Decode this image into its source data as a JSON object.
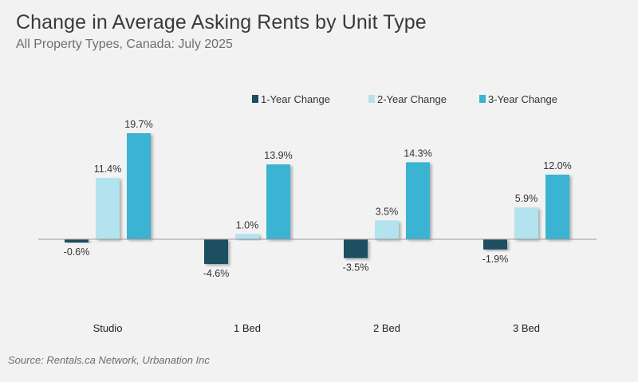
{
  "header": {
    "title": "Change in Average Asking Rents by Unit Type",
    "subtitle": "All Property Types, Canada: July 2025"
  },
  "footer": {
    "source": "Source: Rentals.ca Network, Urbanation Inc"
  },
  "chart_data": {
    "type": "bar",
    "title": "Change in Average Asking Rents by Unit Type",
    "subtitle": "All Property Types, Canada: July 2025",
    "categories": [
      "Studio",
      "1 Bed",
      "2 Bed",
      "3 Bed"
    ],
    "series": [
      {
        "name": "1-Year Change",
        "color": "#1b4f5e",
        "values": [
          -0.6,
          -4.6,
          -3.5,
          -1.9
        ],
        "labels": [
          "-0.6%",
          "-4.6%",
          "-3.5%",
          "-1.9%"
        ]
      },
      {
        "name": "2-Year Change",
        "color": "#b3e3ef",
        "values": [
          11.4,
          1.0,
          3.5,
          5.9
        ],
        "labels": [
          "11.4%",
          "1.0%",
          "3.5%",
          "5.9%"
        ]
      },
      {
        "name": "3-Year Change",
        "color": "#3ab3d2",
        "values": [
          19.7,
          13.9,
          14.3,
          12.0
        ],
        "labels": [
          "19.7%",
          "13.9%",
          "14.3%",
          "12.0%"
        ]
      }
    ],
    "legend_position": "top-right",
    "grid": false,
    "xlabel": "",
    "ylabel": ""
  }
}
